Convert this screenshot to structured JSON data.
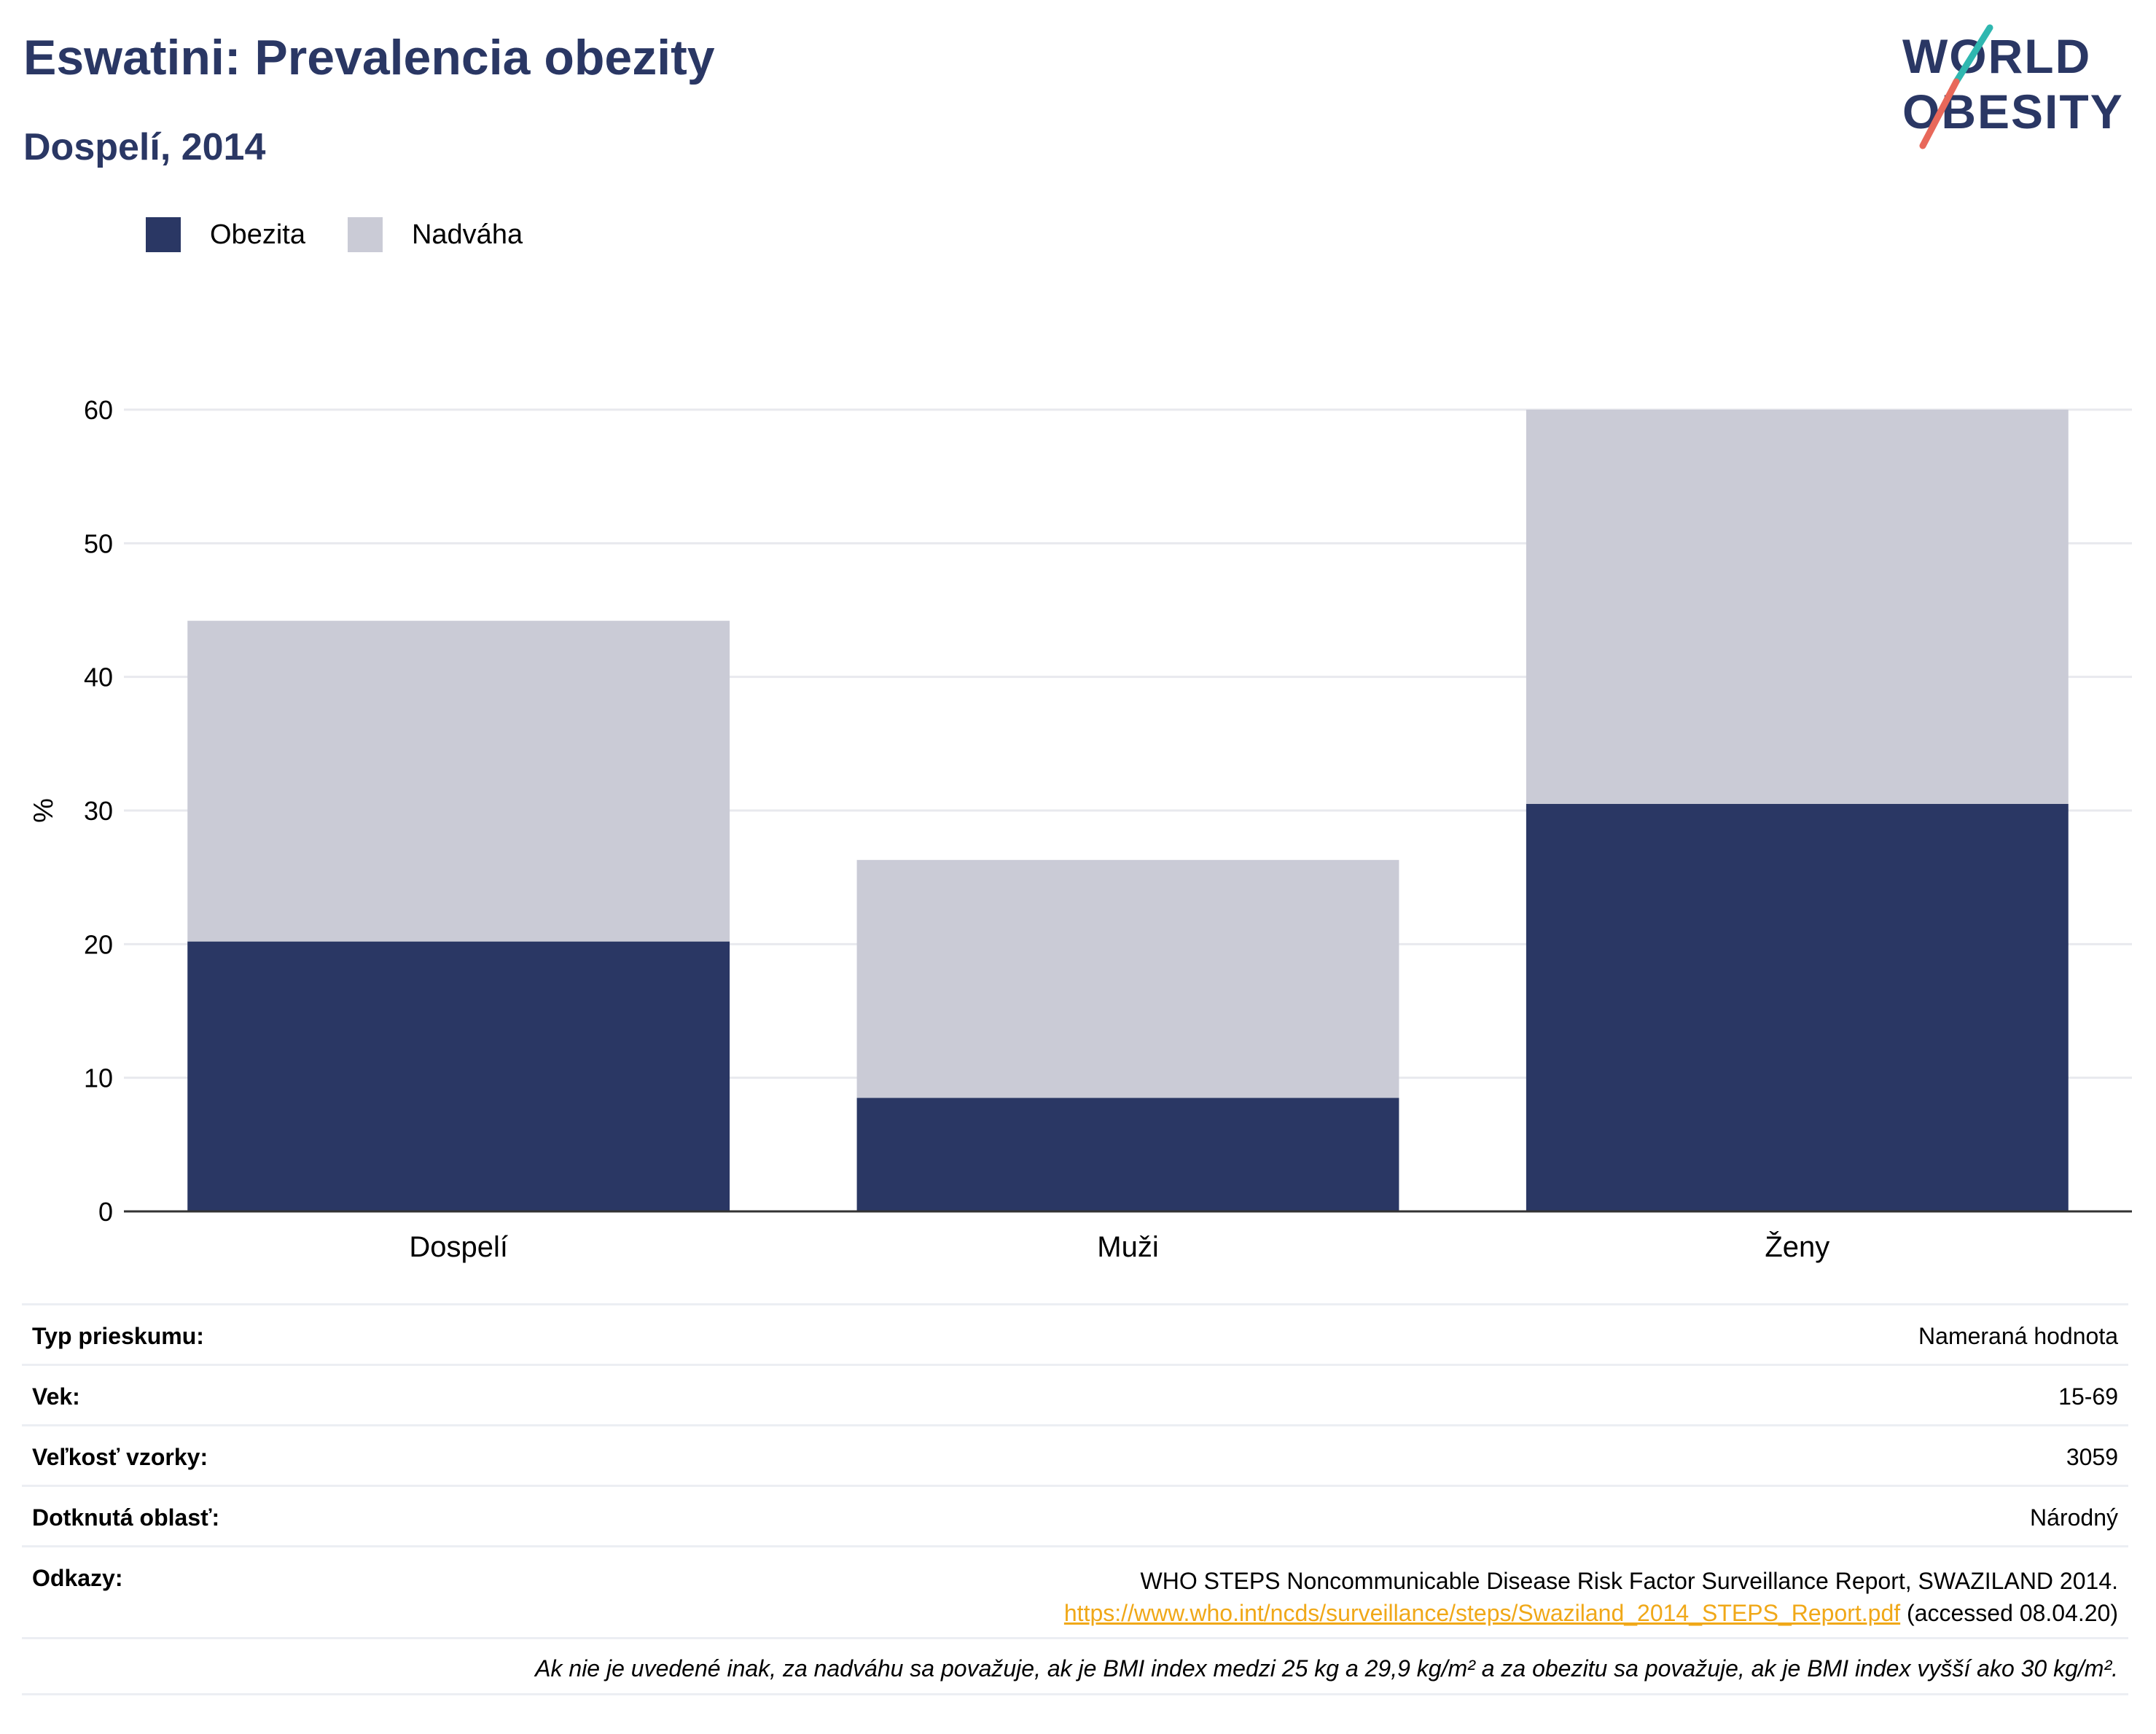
{
  "header": {
    "title": "Eswatini: Prevalencia obezity",
    "subtitle": "Dospelí, 2014",
    "logo_line1": "WORLD",
    "logo_line2": "OBESITY"
  },
  "legend": [
    {
      "label": "Obezita",
      "color": "#2a3764"
    },
    {
      "label": "Nadváha",
      "color": "#cacbd6"
    }
  ],
  "chart_data": {
    "type": "bar",
    "stacked": true,
    "categories": [
      "Dospelí",
      "Muži",
      "Ženy"
    ],
    "series": [
      {
        "name": "Obezita",
        "values": [
          20.2,
          8.5,
          30.5
        ],
        "color": "#2a3764"
      },
      {
        "name": "Nadváha",
        "values": [
          24.0,
          17.8,
          29.5
        ],
        "color": "#cacbd6"
      }
    ],
    "ylabel": "%",
    "xlabel": "",
    "ylim": [
      0,
      60
    ],
    "yticks": [
      "0",
      "10",
      "20",
      "30",
      "40",
      "50",
      "60"
    ],
    "grid": true,
    "legend_position": "top-left"
  },
  "details": {
    "survey_type": {
      "label": "Typ prieskumu:",
      "value": "Nameraná hodnota"
    },
    "age": {
      "label": "Vek:",
      "value": "15-69"
    },
    "sample_size": {
      "label": "Veľkosť vzorky:",
      "value": "3059"
    },
    "area": {
      "label": "Dotknutá oblasť:",
      "value": "Národný"
    },
    "references": {
      "label": "Odkazy:",
      "text": "WHO STEPS Noncommunicable Disease Risk Factor Surveillance Report, SWAZILAND 2014.",
      "link": "https://www.who.int/ncds/surveillance/steps/Swaziland_2014_STEPS_Report.pdf",
      "accessed": " (accessed 08.04.20)"
    },
    "note": "Ak nie je uvedené inak, za nadváhu sa považuje, ak je BMI index medzi 25 kg a 29,9 kg/m² a za obezitu sa považuje, ak je BMI index vyšší ako 30 kg/m²."
  }
}
